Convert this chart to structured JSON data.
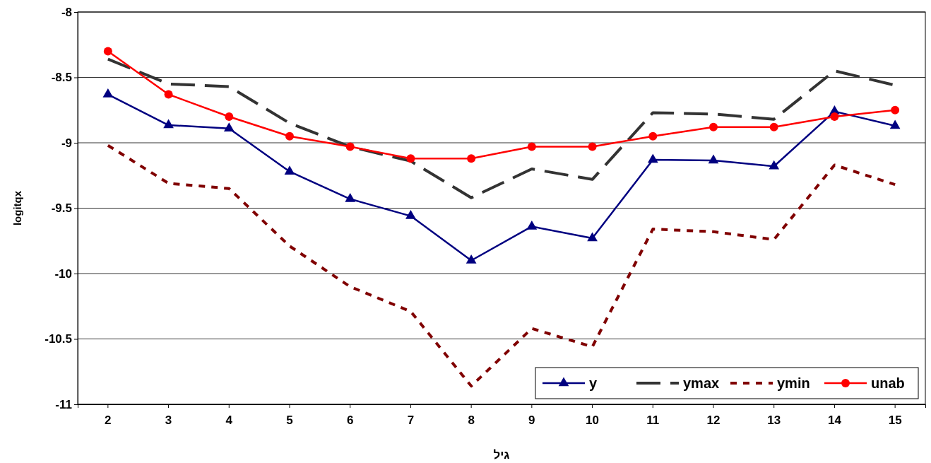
{
  "chart_data": {
    "type": "line",
    "xlabel": "גיל",
    "ylabel": "logitqx",
    "categories": [
      "2",
      "3",
      "4",
      "5",
      "6",
      "7",
      "8",
      "9",
      "10",
      "11",
      "12",
      "13",
      "14",
      "15"
    ],
    "ylim": [
      -11,
      -8
    ],
    "yticks": [
      -11,
      -10.5,
      -10,
      -9.5,
      -9,
      -8.5,
      -8
    ],
    "grid": "y",
    "legend": "bottom right",
    "series": [
      {
        "name": "y",
        "color": "#000080",
        "marker": "triangle",
        "line_style": "solid",
        "values": [
          -8.63,
          -8.865,
          -8.89,
          -9.22,
          -9.43,
          -9.56,
          -9.9,
          -9.64,
          -9.73,
          -9.13,
          -9.135,
          -9.18,
          -8.76,
          -8.87
        ]
      },
      {
        "name": "ymax",
        "color": "#333333",
        "marker": "none",
        "line_style": "dashed",
        "values": [
          -8.36,
          -8.55,
          -8.57,
          -8.85,
          -9.03,
          -9.14,
          -9.42,
          -9.2,
          -9.28,
          -8.77,
          -8.78,
          -8.82,
          -8.45,
          -8.56
        ]
      },
      {
        "name": "ymin",
        "color": "#800000",
        "marker": "none",
        "line_style": "dotted",
        "values": [
          -9.02,
          -9.31,
          -9.35,
          -9.79,
          -10.1,
          -10.29,
          -10.86,
          -10.42,
          -10.56,
          -9.66,
          -9.68,
          -9.74,
          -9.17,
          -9.32
        ]
      },
      {
        "name": "unab",
        "color": "#ff0000",
        "marker": "circle",
        "line_style": "solid",
        "values": [
          -8.3,
          -8.63,
          -8.8,
          -8.95,
          -9.03,
          -9.12,
          -9.12,
          -9.03,
          -9.03,
          -8.95,
          -8.88,
          -8.88,
          -8.8,
          -8.75
        ]
      }
    ]
  }
}
